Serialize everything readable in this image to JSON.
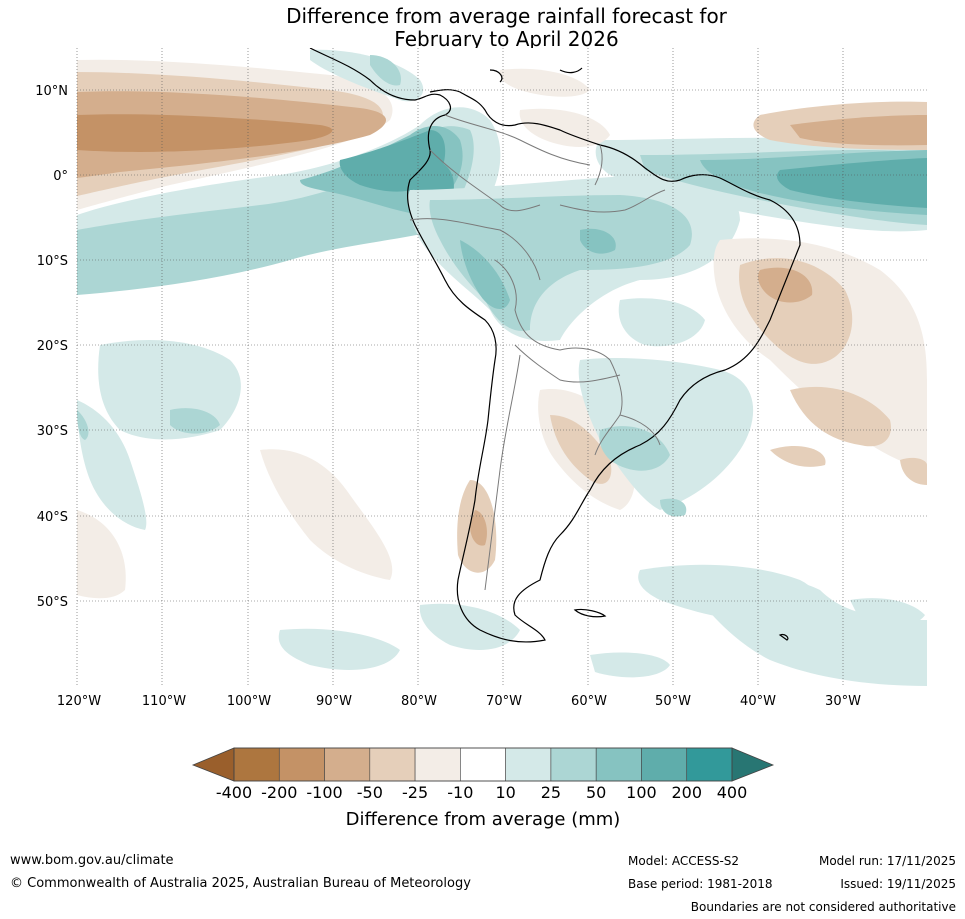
{
  "title": {
    "line1": "Difference from average rainfall forecast for",
    "line2": "February to April 2026"
  },
  "map": {
    "lat_labels": [
      "10°N",
      "0°",
      "10°S",
      "20°S",
      "30°S",
      "40°S",
      "50°S"
    ],
    "lon_labels": [
      "120°W",
      "110°W",
      "100°W",
      "90°W",
      "80°W",
      "70°W",
      "60°W",
      "50°W",
      "40°W",
      "30°W"
    ]
  },
  "colorbar": {
    "tick_labels": [
      "-400",
      "-200",
      "-100",
      "-50",
      "-25",
      "-10",
      "10",
      "25",
      "50",
      "100",
      "200",
      "400"
    ],
    "label": "Difference from average (mm)",
    "colors": [
      "#ad763f",
      "#c49266",
      "#d4ae8d",
      "#e5cfba",
      "#f3ede7",
      "#ffffff",
      "#d4e9e8",
      "#acd6d4",
      "#86c3c1",
      "#5fadab",
      "#32999a"
    ],
    "under_color": "#9a5f2c",
    "over_color": "#287673"
  },
  "footer": {
    "website": "www.bom.gov.au/climate",
    "copyright": "© Commonwealth of Australia 2025, Australian Bureau of Meteorology",
    "model": "Model: ACCESS-S2",
    "base_period": "Base period: 1981-2018",
    "model_run": "Model run: 17/11/2025",
    "issued": "Issued: 19/11/2025",
    "disclaimer": "Boundaries are not considered authoritative"
  }
}
